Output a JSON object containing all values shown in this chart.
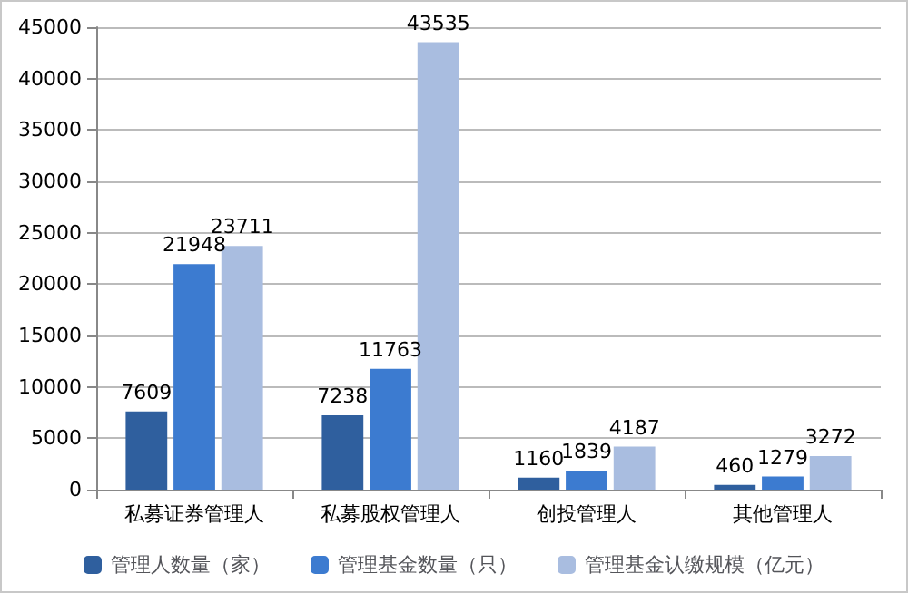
{
  "chart_data": {
    "type": "bar",
    "categories": [
      "私募证券管理人",
      "私募股权管理人",
      "创投管理人",
      "其他管理人"
    ],
    "series": [
      {
        "name": "管理人数量（家）",
        "color": "#2f5f9e",
        "values": [
          7609,
          7238,
          1160,
          460
        ]
      },
      {
        "name": "管理基金数量（只）",
        "color": "#3c7bd0",
        "values": [
          21948,
          11763,
          1839,
          1279
        ]
      },
      {
        "name": "管理基金认缴规模（亿元）",
        "color": "#a9bde0",
        "values": [
          23711,
          43535,
          4187,
          3272
        ]
      }
    ],
    "ylim": [
      0,
      45000
    ],
    "yticks": [
      0,
      5000,
      10000,
      15000,
      20000,
      25000,
      30000,
      35000,
      40000,
      45000
    ],
    "grid": "y",
    "legend": "bottom",
    "data_labels": true
  }
}
